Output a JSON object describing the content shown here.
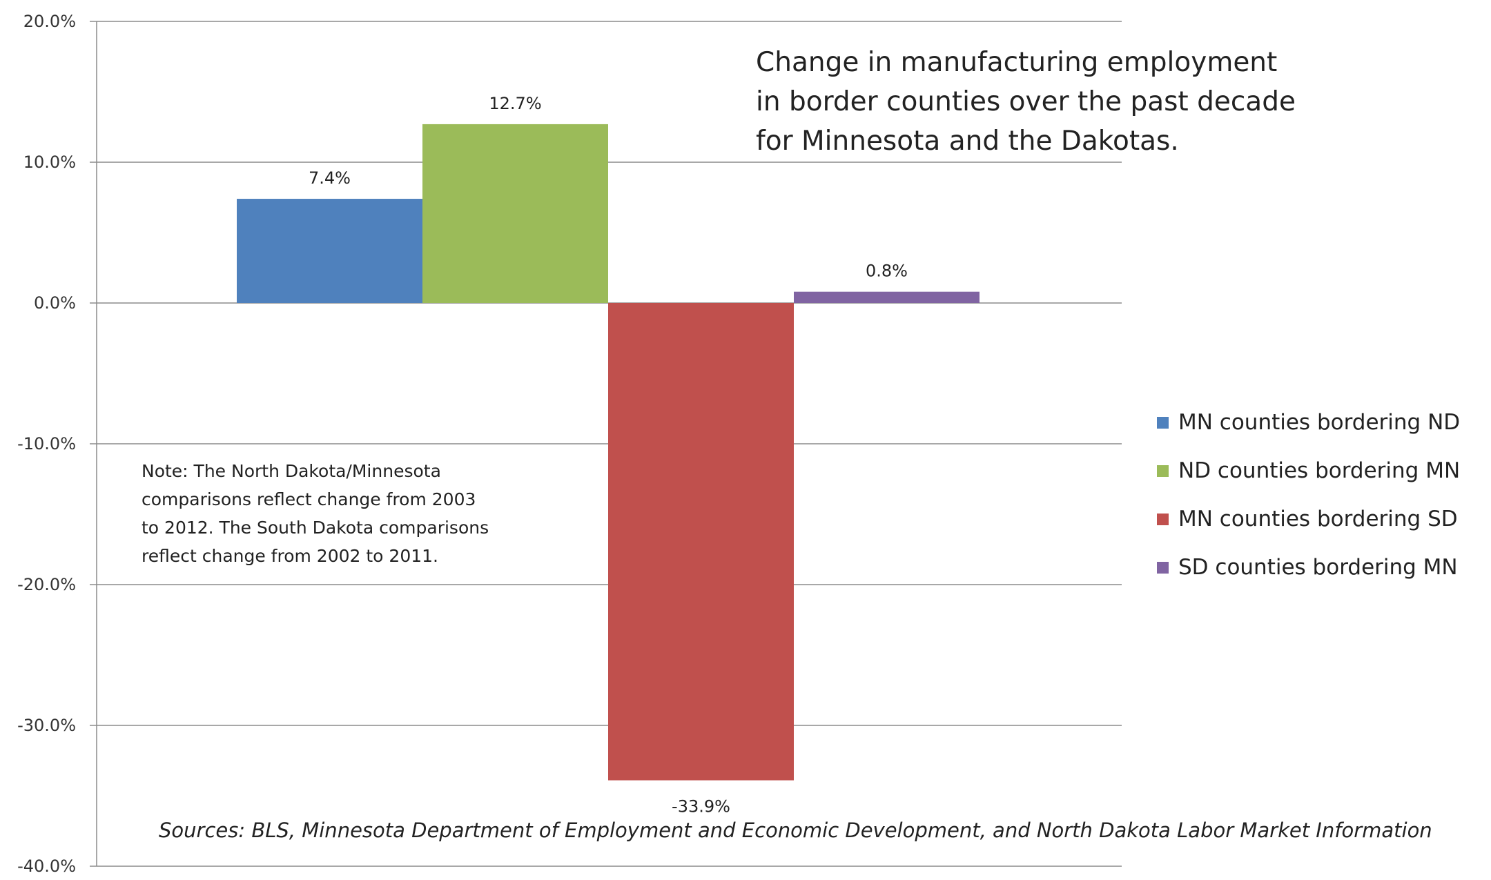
{
  "chart_data": {
    "type": "bar",
    "title_lines": [
      "Change in manufacturing employment",
      "in border counties over the past decade",
      "for Minnesota and the Dakotas."
    ],
    "ylim": [
      -40,
      20
    ],
    "yticks": [
      20,
      10,
      0,
      -10,
      -20,
      -30,
      -40
    ],
    "ytick_labels": [
      "20.0%",
      "10.0%",
      "0.0%",
      "-10.0%",
      "-20.0%",
      "-30.0%",
      "-40.0%"
    ],
    "grid": true,
    "legend_position": "right",
    "series": [
      {
        "name": "MN counties bordering ND",
        "value": 7.4,
        "label": "7.4%",
        "color": "#4f81bd"
      },
      {
        "name": "ND counties bordering MN",
        "value": 12.7,
        "label": "12.7%",
        "color": "#9bbb59"
      },
      {
        "name": "MN counties bordering SD",
        "value": -33.9,
        "label": "-33.9%",
        "color": "#c0504d"
      },
      {
        "name": "SD counties bordering MN",
        "value": 0.8,
        "label": "0.8%",
        "color": "#8064a2"
      }
    ],
    "note_lines": [
      "Note: The North Dakota/Minnesota",
      "comparisons reflect change from 2003",
      "to 2012. The South Dakota comparisons",
      "reflect change from 2002 to 2011."
    ],
    "source": "Sources: BLS, Minnesota Department of Employment and Economic Development, and North Dakota Labor Market Information"
  }
}
